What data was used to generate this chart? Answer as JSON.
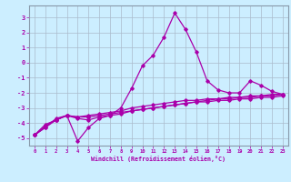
{
  "title": "",
  "xlabel": "Windchill (Refroidissement éolien,°C)",
  "ylabel": "",
  "xlim": [
    -0.5,
    23.5
  ],
  "ylim": [
    -5.5,
    3.8
  ],
  "xticks": [
    0,
    1,
    2,
    3,
    4,
    5,
    6,
    7,
    8,
    9,
    10,
    11,
    12,
    13,
    14,
    15,
    16,
    17,
    18,
    19,
    20,
    21,
    22,
    23
  ],
  "yticks": [
    -5,
    -4,
    -3,
    -2,
    -1,
    0,
    1,
    2,
    3
  ],
  "background_color": "#cceeff",
  "line_color": "#aa00aa",
  "grid_color": "#aabbcc",
  "line1_x": [
    0,
    1,
    2,
    3,
    4,
    5,
    6,
    7,
    8,
    9,
    10,
    11,
    12,
    13,
    14,
    15,
    16,
    17,
    18,
    19,
    20,
    21,
    22,
    23
  ],
  "line1_y": [
    -4.8,
    -4.3,
    -3.8,
    -3.5,
    -5.2,
    -4.3,
    -3.7,
    -3.5,
    -3.0,
    -1.7,
    -0.2,
    0.5,
    1.7,
    3.3,
    2.2,
    0.7,
    -1.2,
    -1.8,
    -2.0,
    -2.0,
    -1.2,
    -1.5,
    -1.9,
    -2.1
  ],
  "line2_x": [
    0,
    1,
    2,
    3,
    4,
    5,
    6,
    7,
    8,
    9,
    10,
    11,
    12,
    13,
    14,
    15,
    16,
    17,
    18,
    19,
    20,
    21,
    22,
    23
  ],
  "line2_y": [
    -4.8,
    -4.3,
    -3.7,
    -3.5,
    -3.6,
    -3.5,
    -3.4,
    -3.3,
    -3.2,
    -3.0,
    -2.9,
    -2.8,
    -2.7,
    -2.6,
    -2.5,
    -2.5,
    -2.4,
    -2.4,
    -2.3,
    -2.3,
    -2.2,
    -2.2,
    -2.1,
    -2.1
  ],
  "line3_x": [
    0,
    1,
    2,
    3,
    4,
    5,
    6,
    7,
    8,
    9,
    10,
    11,
    12,
    13,
    14,
    15,
    16,
    17,
    18,
    19,
    20,
    21,
    22,
    23
  ],
  "line3_y": [
    -4.8,
    -4.2,
    -3.8,
    -3.5,
    -3.6,
    -3.6,
    -3.5,
    -3.4,
    -3.3,
    -3.2,
    -3.1,
    -3.0,
    -2.9,
    -2.8,
    -2.7,
    -2.6,
    -2.6,
    -2.5,
    -2.5,
    -2.4,
    -2.4,
    -2.3,
    -2.3,
    -2.2
  ],
  "line4_x": [
    0,
    1,
    2,
    3,
    4,
    5,
    6,
    7,
    8,
    9,
    10,
    11,
    12,
    13,
    14,
    15,
    16,
    17,
    18,
    19,
    20,
    21,
    22,
    23
  ],
  "line4_y": [
    -4.8,
    -4.1,
    -3.8,
    -3.5,
    -3.7,
    -3.8,
    -3.6,
    -3.5,
    -3.4,
    -3.2,
    -3.1,
    -3.0,
    -2.9,
    -2.8,
    -2.7,
    -2.6,
    -2.5,
    -2.4,
    -2.4,
    -2.3,
    -2.3,
    -2.2,
    -2.2,
    -2.1
  ]
}
